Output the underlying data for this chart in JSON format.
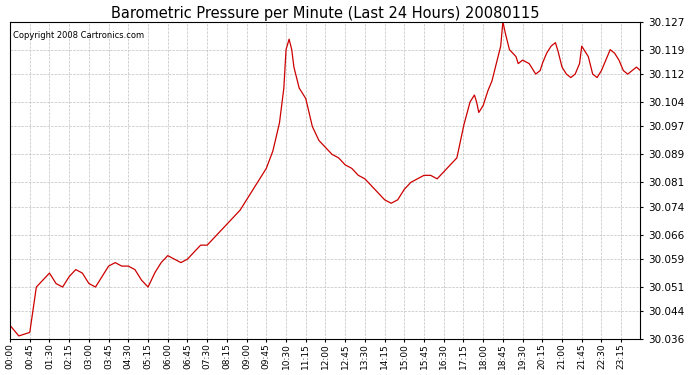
{
  "title": "Barometric Pressure per Minute (Last 24 Hours) 20080115",
  "copyright": "Copyright 2008 Cartronics.com",
  "line_color": "#cc0000",
  "background_color": "#ffffff",
  "plot_background": "#ffffff",
  "grid_color": "#c0c0c0",
  "ylim": [
    30.036,
    30.127
  ],
  "yticks": [
    30.036,
    30.044,
    30.051,
    30.059,
    30.066,
    30.074,
    30.081,
    30.089,
    30.097,
    30.104,
    30.112,
    30.119,
    30.127
  ],
  "xtick_labels": [
    "00:00",
    "00:45",
    "01:30",
    "02:15",
    "03:00",
    "03:45",
    "04:30",
    "05:15",
    "06:00",
    "06:45",
    "07:30",
    "08:15",
    "09:00",
    "09:45",
    "10:30",
    "11:15",
    "12:00",
    "12:45",
    "13:30",
    "14:15",
    "15:00",
    "15:45",
    "16:30",
    "17:15",
    "18:00",
    "18:45",
    "19:30",
    "20:15",
    "21:00",
    "21:45",
    "22:30",
    "23:15"
  ],
  "key_points": [
    [
      0,
      30.04
    ],
    [
      20,
      30.037
    ],
    [
      45,
      30.038
    ],
    [
      60,
      30.051
    ],
    [
      75,
      30.053
    ],
    [
      90,
      30.055
    ],
    [
      105,
      30.052
    ],
    [
      120,
      30.051
    ],
    [
      135,
      30.054
    ],
    [
      150,
      30.056
    ],
    [
      165,
      30.055
    ],
    [
      180,
      30.052
    ],
    [
      195,
      30.051
    ],
    [
      210,
      30.054
    ],
    [
      225,
      30.057
    ],
    [
      240,
      30.058
    ],
    [
      255,
      30.057
    ],
    [
      270,
      30.057
    ],
    [
      285,
      30.056
    ],
    [
      300,
      30.053
    ],
    [
      315,
      30.051
    ],
    [
      330,
      30.055
    ],
    [
      345,
      30.058
    ],
    [
      360,
      30.06
    ],
    [
      375,
      30.059
    ],
    [
      390,
      30.058
    ],
    [
      405,
      30.059
    ],
    [
      420,
      30.061
    ],
    [
      435,
      30.063
    ],
    [
      450,
      30.063
    ],
    [
      465,
      30.065
    ],
    [
      480,
      30.067
    ],
    [
      495,
      30.069
    ],
    [
      510,
      30.071
    ],
    [
      525,
      30.073
    ],
    [
      540,
      30.076
    ],
    [
      555,
      30.079
    ],
    [
      570,
      30.082
    ],
    [
      585,
      30.085
    ],
    [
      600,
      30.09
    ],
    [
      615,
      30.098
    ],
    [
      625,
      30.108
    ],
    [
      630,
      30.119
    ],
    [
      637,
      30.122
    ],
    [
      643,
      30.119
    ],
    [
      648,
      30.114
    ],
    [
      660,
      30.108
    ],
    [
      675,
      30.105
    ],
    [
      690,
      30.097
    ],
    [
      705,
      30.093
    ],
    [
      720,
      30.091
    ],
    [
      735,
      30.089
    ],
    [
      750,
      30.088
    ],
    [
      765,
      30.086
    ],
    [
      780,
      30.085
    ],
    [
      795,
      30.083
    ],
    [
      810,
      30.082
    ],
    [
      825,
      30.08
    ],
    [
      840,
      30.078
    ],
    [
      855,
      30.076
    ],
    [
      870,
      30.075
    ],
    [
      885,
      30.076
    ],
    [
      900,
      30.079
    ],
    [
      915,
      30.081
    ],
    [
      930,
      30.082
    ],
    [
      945,
      30.083
    ],
    [
      960,
      30.083
    ],
    [
      975,
      30.082
    ],
    [
      990,
      30.084
    ],
    [
      1005,
      30.086
    ],
    [
      1020,
      30.088
    ],
    [
      1035,
      30.097
    ],
    [
      1050,
      30.104
    ],
    [
      1060,
      30.106
    ],
    [
      1065,
      30.104
    ],
    [
      1070,
      30.101
    ],
    [
      1080,
      30.103
    ],
    [
      1090,
      30.107
    ],
    [
      1100,
      30.11
    ],
    [
      1110,
      30.115
    ],
    [
      1120,
      30.12
    ],
    [
      1125,
      30.127
    ],
    [
      1130,
      30.124
    ],
    [
      1140,
      30.119
    ],
    [
      1155,
      30.117
    ],
    [
      1160,
      30.115
    ],
    [
      1170,
      30.116
    ],
    [
      1185,
      30.115
    ],
    [
      1195,
      30.113
    ],
    [
      1200,
      30.112
    ],
    [
      1210,
      30.113
    ],
    [
      1215,
      30.115
    ],
    [
      1225,
      30.118
    ],
    [
      1235,
      30.12
    ],
    [
      1245,
      30.121
    ],
    [
      1250,
      30.119
    ],
    [
      1260,
      30.114
    ],
    [
      1270,
      30.112
    ],
    [
      1280,
      30.111
    ],
    [
      1290,
      30.112
    ],
    [
      1300,
      30.115
    ],
    [
      1305,
      30.12
    ],
    [
      1310,
      30.119
    ],
    [
      1320,
      30.117
    ],
    [
      1330,
      30.112
    ],
    [
      1340,
      30.111
    ],
    [
      1350,
      30.113
    ],
    [
      1360,
      30.116
    ],
    [
      1370,
      30.119
    ],
    [
      1380,
      30.118
    ],
    [
      1390,
      30.116
    ],
    [
      1400,
      30.113
    ],
    [
      1410,
      30.112
    ],
    [
      1420,
      30.113
    ],
    [
      1430,
      30.114
    ],
    [
      1439,
      30.113
    ]
  ]
}
